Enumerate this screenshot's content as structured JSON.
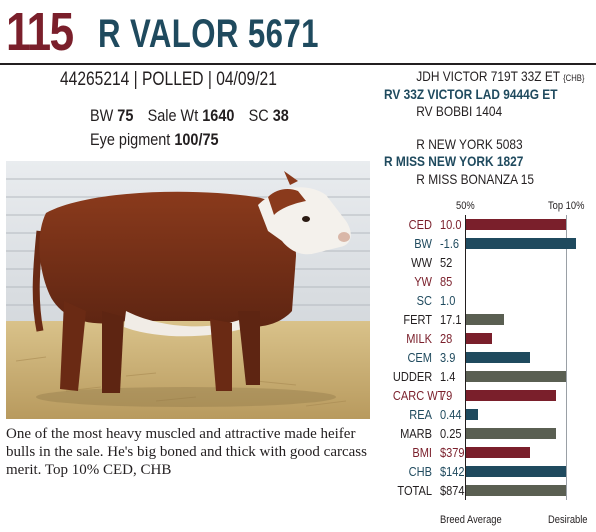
{
  "header": {
    "lot_number": "115",
    "animal_name": "R VALOR 5671"
  },
  "info_line": "44265214 | POLLED | 04/09/21",
  "stats": {
    "bw_label": "BW",
    "bw_value": "75",
    "sale_wt_label": "Sale Wt",
    "sale_wt_value": "1640",
    "sc_label": "SC",
    "sc_value": "38",
    "eye_label": "Eye pigment",
    "eye_value": "100/75"
  },
  "pedigree": {
    "sire_sire": "JDH VICTOR 719T 33Z ET",
    "sire_sire_tag": "{CHB}",
    "sire": "RV 33Z VICTOR LAD 9444G ET",
    "sire_dam": "RV BOBBI 1404",
    "dam_sire": "R NEW YORK 5083",
    "dam": "R MISS NEW YORK 1827",
    "dam_dam": "R MISS BONANZA 15"
  },
  "description": "One of the most heavy muscled and attractive made heifer bulls in the sale. He's big boned and thick with good carcass merit. Top 10% CED, CHB",
  "epd": {
    "header_left": "50%",
    "header_right": "Top 10%",
    "footer_left": "Breed Average",
    "footer_right": "Desirable",
    "rows": [
      {
        "label": "CED",
        "value": "10.0",
        "color": "red",
        "bar": 1.0
      },
      {
        "label": "BW",
        "value": "-1.6",
        "color": "blue",
        "bar": 1.1
      },
      {
        "label": "WW",
        "value": "52",
        "color": "gray",
        "bar": 0
      },
      {
        "label": "YW",
        "value": "85",
        "color": "red",
        "bar": 0
      },
      {
        "label": "SC",
        "value": "1.0",
        "color": "blue",
        "bar": 0
      },
      {
        "label": "FERT",
        "value": "17.1",
        "color": "gray",
        "bar": 0.38
      },
      {
        "label": "MILK",
        "value": "28",
        "color": "red",
        "bar": 0.26
      },
      {
        "label": "CEM",
        "value": "3.9",
        "color": "blue",
        "bar": 0.64
      },
      {
        "label": "UDDER",
        "value": "1.4",
        "color": "gray",
        "bar": 1.0
      },
      {
        "label": "CARC WT",
        "value": "79",
        "color": "red",
        "bar": 0.9
      },
      {
        "label": "REA",
        "value": "0.44",
        "color": "blue",
        "bar": 0.12
      },
      {
        "label": "MARB",
        "value": "0.25",
        "color": "gray",
        "bar": 0.9
      },
      {
        "label": "BMI",
        "value": "$379",
        "color": "red",
        "bar": 0.64
      },
      {
        "label": "CHB",
        "value": "$142",
        "color": "blue",
        "bar": 1.0
      },
      {
        "label": "TOTAL",
        "value": "$874",
        "color": "gray",
        "bar": 1.0
      }
    ]
  },
  "colors": {
    "maroon": "#7a1f2b",
    "navy": "#1f4a5e",
    "olive": "#5a5f52"
  }
}
